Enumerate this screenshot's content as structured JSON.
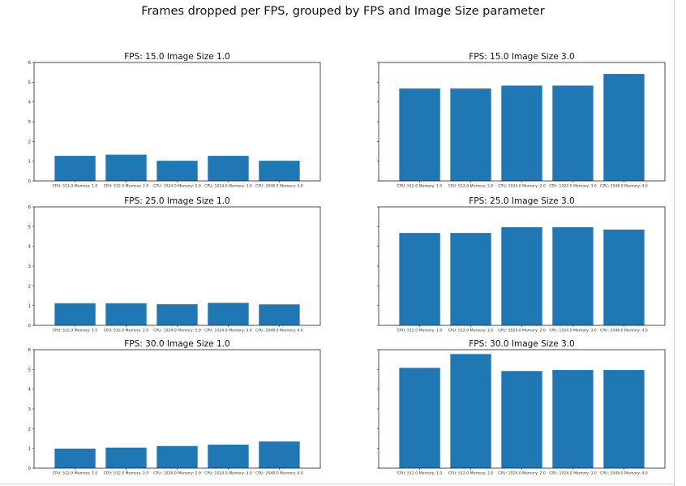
{
  "figure_title": "Frames dropped per FPS, grouped by FPS and Image Size parameter",
  "colors": {
    "bar": "#1f77b4"
  },
  "chart_data": [
    {
      "type": "bar",
      "title": "FPS: 15.0 Image Size 1.0",
      "categories": [
        "CPU: 512.0 Memory: 1.0",
        "CPU: 512.0 Memory: 2.0",
        "CPU: 1024.0 Memory: 2.0",
        "CPU: 1024.0 Memory: 3.0",
        "CPU: 2048.0 Memory: 4.0"
      ],
      "values": [
        1.27,
        1.33,
        1.02,
        1.27,
        1.02
      ],
      "ylim": [
        0,
        6
      ],
      "yticks": [
        0,
        1,
        2,
        3,
        4,
        5,
        6
      ]
    },
    {
      "type": "bar",
      "title": "FPS: 15.0 Image Size 3.0",
      "categories": [
        "CPU: 512.0 Memory: 1.0",
        "CPU: 512.0 Memory: 2.0",
        "CPU: 1024.0 Memory: 2.0",
        "CPU: 1024.0 Memory: 3.0",
        "CPU: 2048.0 Memory: 4.0"
      ],
      "values": [
        4.68,
        4.68,
        4.83,
        4.83,
        5.42
      ],
      "ylim": [
        0,
        6
      ],
      "yticks": []
    },
    {
      "type": "bar",
      "title": "FPS: 25.0 Image Size 1.0",
      "categories": [
        "CPU: 512.0 Memory: 1.0",
        "CPU: 512.0 Memory: 2.0",
        "CPU: 1024.0 Memory: 2.0",
        "CPU: 1024.0 Memory: 3.0",
        "CPU: 2048.0 Memory: 4.0"
      ],
      "values": [
        1.12,
        1.12,
        1.07,
        1.14,
        1.06
      ],
      "ylim": [
        0,
        6
      ],
      "yticks": [
        0,
        1,
        2,
        3,
        4,
        5,
        6
      ]
    },
    {
      "type": "bar",
      "title": "FPS: 25.0 Image Size 3.0",
      "categories": [
        "CPU: 512.0 Memory: 1.0",
        "CPU: 512.0 Memory: 2.0",
        "CPU: 1024.0 Memory: 2.0",
        "CPU: 1024.0 Memory: 3.0",
        "CPU: 2048.0 Memory: 4.0"
      ],
      "values": [
        4.68,
        4.68,
        4.97,
        4.97,
        4.85
      ],
      "ylim": [
        0,
        6
      ],
      "yticks": []
    },
    {
      "type": "bar",
      "title": "FPS: 30.0 Image Size 1.0",
      "categories": [
        "CPU: 512.0 Memory: 1.0",
        "CPU: 512.0 Memory: 2.0",
        "CPU: 1024.0 Memory: 2.0",
        "CPU: 1024.0 Memory: 3.0",
        "CPU: 2048.0 Memory: 4.0"
      ],
      "values": [
        0.99,
        1.04,
        1.12,
        1.19,
        1.35
      ],
      "ylim": [
        0,
        6
      ],
      "yticks": [
        0,
        1,
        2,
        3,
        4,
        5,
        6
      ]
    },
    {
      "type": "bar",
      "title": "FPS: 30.0 Image Size 3.0",
      "categories": [
        "CPU: 512.0 Memory: 1.0",
        "CPU: 512.0 Memory: 2.0",
        "CPU: 1024.0 Memory: 2.0",
        "CPU: 1024.0 Memory: 3.0",
        "CPU: 2048.0 Memory: 4.0"
      ],
      "values": [
        5.08,
        5.78,
        4.92,
        4.97,
        4.97
      ],
      "ylim": [
        0,
        6
      ],
      "yticks": []
    }
  ]
}
